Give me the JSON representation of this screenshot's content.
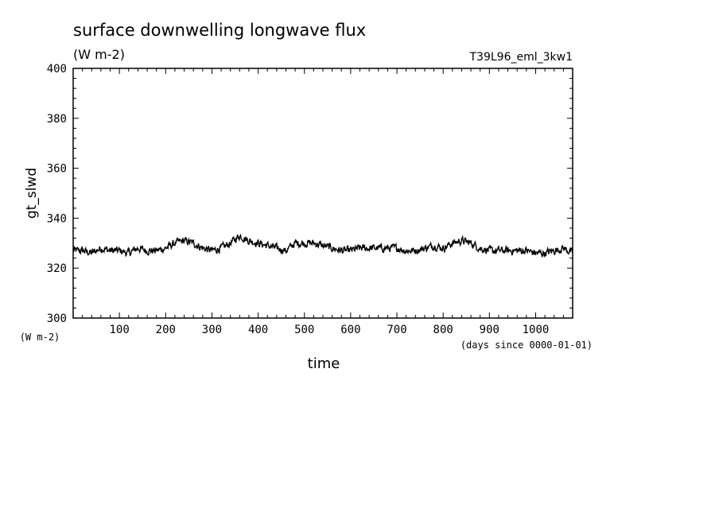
{
  "chart_data": {
    "type": "line",
    "title": "surface downwelling longwave flux",
    "subtitle": "(W m-2)",
    "run_label": "T39L96_eml_3kw1",
    "ylabel": "gt_slwd",
    "yunit": "(W m-2)",
    "xlabel": "time",
    "xunit": "(days since 0000-01-01)",
    "xlim": [
      0,
      1080
    ],
    "ylim": [
      300,
      400
    ],
    "x_ticks": [
      100,
      200,
      300,
      400,
      500,
      600,
      700,
      800,
      900,
      1000
    ],
    "y_ticks": [
      300,
      320,
      340,
      360,
      380,
      400
    ],
    "grid": false,
    "line_color": "#000000",
    "series": [
      {
        "x": [
          0,
          20,
          40,
          60,
          80,
          100,
          120,
          140,
          160,
          180,
          200,
          220,
          240,
          260,
          280,
          300,
          320,
          340,
          360,
          380,
          400,
          420,
          440,
          460,
          480,
          500,
          520,
          540,
          560,
          580,
          600,
          620,
          640,
          660,
          680,
          700,
          720,
          740,
          760,
          780,
          800,
          820,
          840,
          860,
          880,
          900,
          920,
          940,
          960,
          980,
          1000,
          1020,
          1040,
          1060,
          1080
        ],
        "y": [
          327,
          327,
          326,
          328,
          327,
          327,
          326,
          328,
          327,
          327,
          328,
          330,
          331,
          330,
          328,
          327,
          328,
          330,
          333,
          331,
          330,
          329,
          328,
          327,
          330,
          330,
          330,
          329,
          328,
          327,
          327,
          328,
          328,
          328,
          328,
          328,
          327,
          327,
          328,
          329,
          328,
          330,
          331,
          330,
          328,
          327,
          327,
          327,
          327,
          327,
          326,
          326,
          327,
          328,
          326
        ]
      }
    ]
  }
}
